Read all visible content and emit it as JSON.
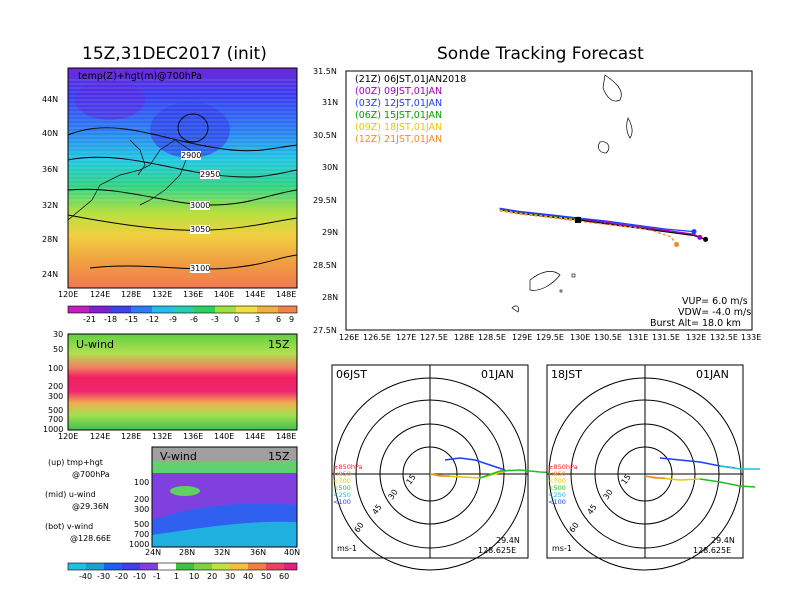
{
  "left": {
    "title": "15Z,31DEC2017 (init)",
    "map_label": "temp(Z)+hgt(m)@700hPa",
    "lat_ticks": [
      "44N",
      "40N",
      "36N",
      "32N",
      "28N",
      "24N"
    ],
    "lon_ticks": [
      "120E",
      "124E",
      "128E",
      "132E",
      "136E",
      "140E",
      "144E",
      "148E"
    ],
    "contours": [
      "2900",
      "2950",
      "3000",
      "3050",
      "3100"
    ],
    "colorbar_ticks": [
      "-21",
      "-18",
      "-15",
      "-12",
      "-9",
      "-6",
      "-3",
      "0",
      "3",
      "6",
      "9"
    ],
    "uwind_label": "U-wind",
    "uwind_time": "15Z",
    "p_ticks": [
      "30",
      "50",
      "100",
      "200",
      "300",
      "500",
      "700",
      "1000"
    ],
    "vwind_label": "V-wind",
    "vwind_time": "15Z",
    "v_p_ticks": [
      "100",
      "200",
      "300",
      "500",
      "700",
      "1000"
    ],
    "v_lat_ticks": [
      "24N",
      "28N",
      "32N",
      "36N",
      "40N"
    ],
    "legend_lines": [
      "(up) tmp+hgt",
      "@700hPa",
      "(mid) u-wind",
      "@29.36N",
      "(bot) v-wind",
      "@128.66E"
    ],
    "wind_colorbar_ticks": [
      "-40",
      "-30",
      "-20",
      "-10",
      "-1",
      "1",
      "10",
      "20",
      "30",
      "40",
      "50",
      "60"
    ]
  },
  "right": {
    "title": "Sonde Tracking Forecast",
    "lat_ticks": [
      "31.5N",
      "31N",
      "30.5N",
      "30N",
      "29.5N",
      "29N",
      "28.5N",
      "28N",
      "27.5N"
    ],
    "lon_ticks": [
      "126E",
      "126.5E",
      "127E",
      "127.5E",
      "128E",
      "128.5E",
      "129E",
      "129.5E",
      "130E",
      "130.5E",
      "131E",
      "131.5E",
      "132E",
      "132.5E",
      "133E"
    ],
    "legend": [
      {
        "text": "(21Z) 06JST,01JAN2018",
        "color": "#000000"
      },
      {
        "text": "(00Z) 09JST,01JAN",
        "color": "#a000c0"
      },
      {
        "text": "(03Z) 12JST,01JAN",
        "color": "#1e3cff"
      },
      {
        "text": "(06Z) 15JST,01JAN",
        "color": "#00a000"
      },
      {
        "text": "(09Z) 18JST,01JAN",
        "color": "#e6c800"
      },
      {
        "text": "(12Z) 21JST,01JAN",
        "color": "#f08c28"
      }
    ],
    "info": [
      "VUP= 6.0 m/s",
      "VDW= -4.0 m/s",
      "Burst Alt= 18.0 km"
    ]
  },
  "hodo1": {
    "time": "06JST",
    "date": "01JAN",
    "rings": [
      "15",
      "30",
      "45",
      "60"
    ],
    "levels": [
      {
        "text": "≥850hPa",
        "color": "#ff2020"
      },
      {
        "text": "<850",
        "color": "#f08c28"
      },
      {
        "text": "<700",
        "color": "#e6c800"
      },
      {
        "text": "<500",
        "color": "#20c020"
      },
      {
        "text": "<250",
        "color": "#20c0e0"
      },
      {
        "text": "<100",
        "color": "#1e3cff"
      }
    ],
    "unit": "ms-1",
    "lat": "29.4N",
    "lon": "128.625E"
  },
  "hodo2": {
    "time": "18JST",
    "date": "01JAN",
    "rings": [
      "15",
      "30",
      "45",
      "60"
    ],
    "levels": [
      {
        "text": "≥850hPa",
        "color": "#ff2020"
      },
      {
        "text": "<850",
        "color": "#f08c28"
      },
      {
        "text": "<700",
        "color": "#e6c800"
      },
      {
        "text": "<500",
        "color": "#20c020"
      },
      {
        "text": "<250",
        "color": "#20c0e0"
      },
      {
        "text": "<100",
        "color": "#1e3cff"
      }
    ],
    "unit": "ms-1",
    "lat": "29.4N",
    "lon": "128.625E"
  },
  "chart_data": [
    {
      "type": "heatmap",
      "title": "15Z,31DEC2017 (init)",
      "variable": "temp(Z)+hgt(m)@700hPa",
      "x_range": [
        "120E",
        "150E"
      ],
      "y_range": [
        "22N",
        "47N"
      ],
      "contour_levels": [
        2900,
        2950,
        3000,
        3050,
        3100
      ],
      "color_levels": [
        -21,
        -18,
        -15,
        -12,
        -9,
        -6,
        -3,
        0,
        3,
        6,
        9
      ]
    },
    {
      "type": "heatmap",
      "title": "U-wind",
      "time": "15Z",
      "x_range": [
        "120E",
        "150E"
      ],
      "y_levels_hPa": [
        30,
        50,
        100,
        200,
        300,
        500,
        700,
        1000
      ]
    },
    {
      "type": "heatmap",
      "title": "V-wind",
      "time": "15Z",
      "x_range": [
        "22N",
        "40N"
      ],
      "y_levels_hPa": [
        100,
        200,
        300,
        500,
        700,
        1000
      ]
    },
    {
      "type": "line",
      "title": "Sonde Tracking Forecast",
      "xlim": [
        126,
        133
      ],
      "ylim": [
        27.5,
        31.5
      ],
      "series": [
        {
          "name": "(21Z) 06JST,01JAN2018",
          "color": "#000000",
          "x": [
            128.65,
            129.0,
            129.5,
            130.0,
            130.5,
            131.0,
            131.5,
            132.0,
            132.2
          ],
          "y": [
            29.36,
            29.3,
            29.25,
            29.2,
            29.14,
            29.08,
            29.02,
            28.96,
            28.9
          ]
        },
        {
          "name": "(00Z) 09JST,01JAN",
          "color": "#a000c0",
          "x": [
            128.65,
            129.0,
            129.5,
            130.0,
            130.5,
            131.0,
            131.5,
            132.0,
            132.1
          ],
          "y": [
            29.37,
            29.32,
            29.27,
            29.22,
            29.16,
            29.1,
            29.04,
            28.98,
            28.93
          ]
        },
        {
          "name": "(03Z) 12JST,01JAN",
          "color": "#1e3cff",
          "x": [
            128.65,
            129.0,
            129.5,
            130.0,
            130.5,
            131.0,
            131.5,
            132.0
          ],
          "y": [
            29.38,
            29.33,
            29.28,
            29.23,
            29.18,
            29.12,
            29.06,
            29.02
          ]
        },
        {
          "name": "(06Z) 15JST,01JAN",
          "color": "#00a000",
          "x": [
            128.65,
            129.0,
            129.5,
            130.0
          ],
          "y": [
            29.36,
            29.31,
            29.26,
            29.21
          ]
        },
        {
          "name": "(09Z) 18JST,01JAN",
          "color": "#e6c800",
          "x": [
            128.65,
            129.0,
            129.5,
            130.0
          ],
          "y": [
            29.35,
            29.3,
            29.25,
            29.2
          ]
        },
        {
          "name": "(12Z) 21JST,01JAN",
          "color": "#f08c28",
          "x": [
            128.65,
            129.0,
            129.5,
            130.0,
            130.5,
            131.0,
            131.3,
            131.6,
            131.7
          ],
          "y": [
            29.34,
            29.29,
            29.24,
            29.18,
            29.13,
            29.08,
            29.03,
            28.94,
            28.82
          ]
        }
      ]
    }
  ]
}
